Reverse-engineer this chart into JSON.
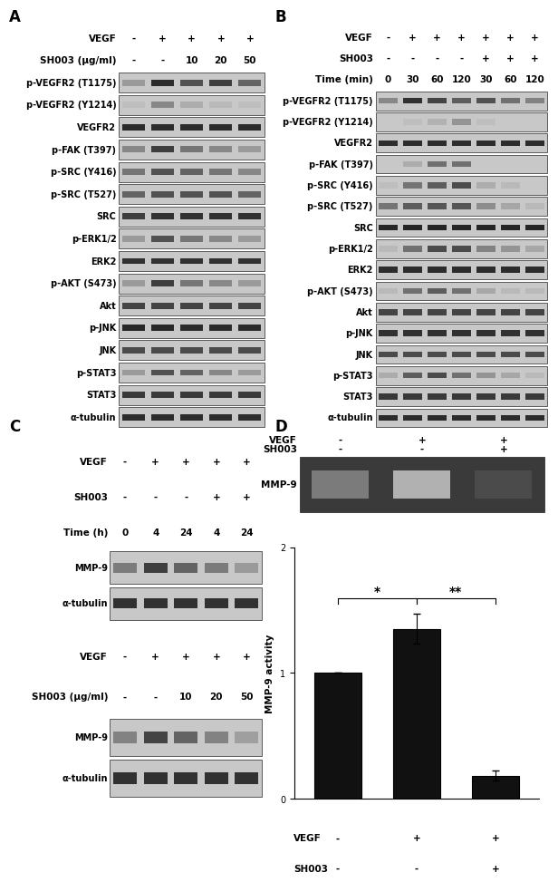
{
  "panel_A": {
    "label": "A",
    "header_rows": [
      "VEGF",
      "SH003 (μg/ml)"
    ],
    "header_vals_vegf": [
      "-",
      "+",
      "+",
      "+",
      "+"
    ],
    "header_vals_sh003": [
      "-",
      "-",
      "10",
      "20",
      "50"
    ],
    "blot_labels": [
      "p-VEGFR2 (T1175)",
      "p-VEGFR2 (Y1214)",
      "VEGFR2",
      "p-FAK (T397)",
      "p-SRC (Y416)",
      "p-SRC (T527)",
      "SRC",
      "p-ERK1/2",
      "ERK2",
      "p-AKT (S473)",
      "Akt",
      "p-JNK",
      "JNK",
      "p-STAT3",
      "STAT3",
      "α-tubulin"
    ],
    "band_patterns": {
      "p-VEGFR2 (T1175)": [
        0.25,
        0.85,
        0.65,
        0.75,
        0.55
      ],
      "p-VEGFR2 (Y1214)": [
        0.05,
        0.35,
        0.15,
        0.08,
        0.05
      ],
      "VEGFR2": [
        0.85,
        0.85,
        0.85,
        0.85,
        0.85
      ],
      "p-FAK (T397)": [
        0.35,
        0.75,
        0.45,
        0.35,
        0.25
      ],
      "p-SRC (Y416)": [
        0.45,
        0.65,
        0.55,
        0.45,
        0.35
      ],
      "p-SRC (T527)": [
        0.55,
        0.65,
        0.65,
        0.65,
        0.55
      ],
      "SRC": [
        0.75,
        0.82,
        0.82,
        0.82,
        0.82
      ],
      "p-ERK1/2": [
        0.25,
        0.65,
        0.45,
        0.35,
        0.25
      ],
      "ERK2": [
        0.82,
        0.82,
        0.82,
        0.82,
        0.82
      ],
      "p-AKT (S473)": [
        0.25,
        0.75,
        0.45,
        0.35,
        0.25
      ],
      "Akt": [
        0.72,
        0.72,
        0.72,
        0.72,
        0.72
      ],
      "p-JNK": [
        0.88,
        0.88,
        0.85,
        0.85,
        0.85
      ],
      "JNK": [
        0.68,
        0.68,
        0.68,
        0.68,
        0.68
      ],
      "p-STAT3": [
        0.25,
        0.65,
        0.55,
        0.35,
        0.25
      ],
      "STAT3": [
        0.78,
        0.78,
        0.78,
        0.78,
        0.78
      ],
      "α-tubulin": [
        0.85,
        0.85,
        0.85,
        0.85,
        0.85
      ]
    }
  },
  "panel_B": {
    "label": "B",
    "header_rows": [
      "VEGF",
      "SH003",
      "Time (min)"
    ],
    "header_vals_vegf": [
      "-",
      "+",
      "+",
      "+",
      "+",
      "+",
      "+"
    ],
    "header_vals_sh003": [
      "-",
      "-",
      "-",
      "-",
      "+",
      "+",
      "+"
    ],
    "header_vals_time": [
      "0",
      "30",
      "60",
      "120",
      "30",
      "60",
      "120"
    ],
    "blot_labels": [
      "p-VEGFR2 (T1175)",
      "p-VEGFR2 (Y1214)",
      "VEGFR2",
      "p-FAK (T397)",
      "p-SRC (Y416)",
      "p-SRC (T527)",
      "SRC",
      "p-ERK1/2",
      "ERK2",
      "p-AKT (S473)",
      "Akt",
      "p-JNK",
      "JNK",
      "p-STAT3",
      "STAT3",
      "α-tubulin"
    ],
    "band_patterns": {
      "p-VEGFR2 (T1175)": [
        0.35,
        0.82,
        0.72,
        0.58,
        0.65,
        0.48,
        0.38
      ],
      "p-VEGFR2 (Y1214)": [
        0.03,
        0.05,
        0.12,
        0.28,
        0.05,
        0.03,
        0.03
      ],
      "VEGFR2": [
        0.85,
        0.85,
        0.85,
        0.85,
        0.85,
        0.85,
        0.85
      ],
      "p-FAK (T397)": [
        0.03,
        0.15,
        0.48,
        0.48,
        0.03,
        0.03,
        0.03
      ],
      "p-SRC (Y416)": [
        0.05,
        0.45,
        0.58,
        0.68,
        0.15,
        0.08,
        0.03
      ],
      "p-SRC (T527)": [
        0.45,
        0.58,
        0.62,
        0.62,
        0.32,
        0.18,
        0.08
      ],
      "SRC": [
        0.88,
        0.88,
        0.88,
        0.88,
        0.88,
        0.88,
        0.88
      ],
      "p-ERK1/2": [
        0.08,
        0.48,
        0.68,
        0.68,
        0.38,
        0.28,
        0.18
      ],
      "ERK2": [
        0.85,
        0.85,
        0.85,
        0.85,
        0.85,
        0.85,
        0.85
      ],
      "p-AKT (S473)": [
        0.08,
        0.48,
        0.58,
        0.48,
        0.18,
        0.08,
        0.08
      ],
      "Akt": [
        0.72,
        0.72,
        0.72,
        0.72,
        0.72,
        0.72,
        0.72
      ],
      "p-JNK": [
        0.82,
        0.82,
        0.82,
        0.82,
        0.82,
        0.82,
        0.82
      ],
      "JNK": [
        0.68,
        0.68,
        0.68,
        0.68,
        0.68,
        0.68,
        0.68
      ],
      "p-STAT3": [
        0.15,
        0.58,
        0.68,
        0.48,
        0.28,
        0.18,
        0.08
      ],
      "STAT3": [
        0.78,
        0.78,
        0.78,
        0.78,
        0.78,
        0.78,
        0.78
      ],
      "α-tubulin": [
        0.85,
        0.85,
        0.85,
        0.85,
        0.85,
        0.85,
        0.85
      ]
    }
  },
  "panel_C": {
    "label": "C",
    "sub1_header": [
      "VEGF",
      "SH003",
      "Time (h)"
    ],
    "sub1_vegf": [
      "-",
      "+",
      "+",
      "+",
      "+"
    ],
    "sub1_sh003": [
      "-",
      "-",
      "-",
      "+",
      "+"
    ],
    "sub1_time": [
      "0",
      "4",
      "24",
      "4",
      "24"
    ],
    "sub1_blots": [
      "MMP-9",
      "α-tubulin"
    ],
    "sub1_patterns": {
      "MMP-9": [
        0.42,
        0.75,
        0.55,
        0.42,
        0.25
      ],
      "α-tubulin": [
        0.82,
        0.82,
        0.82,
        0.82,
        0.82
      ]
    },
    "sub2_header": [
      "VEGF",
      "SH003 (μg/ml)"
    ],
    "sub2_vegf": [
      "-",
      "+",
      "+",
      "+",
      "+"
    ],
    "sub2_sh003": [
      "-",
      "-",
      "10",
      "20",
      "50"
    ],
    "sub2_blots": [
      "MMP-9",
      "α-tubulin"
    ],
    "sub2_patterns": {
      "MMP-9": [
        0.38,
        0.72,
        0.55,
        0.38,
        0.22
      ],
      "α-tubulin": [
        0.82,
        0.82,
        0.82,
        0.82,
        0.82
      ]
    }
  },
  "panel_D": {
    "label": "D",
    "gel_vegf": [
      "-",
      "+",
      "+"
    ],
    "gel_sh003": [
      "-",
      "-",
      "+"
    ],
    "gel_band_alphas": [
      0.45,
      0.82,
      0.12
    ],
    "bar_values": [
      1.0,
      1.35,
      0.18
    ],
    "bar_errors": [
      0.0,
      0.12,
      0.04
    ],
    "bar_colors": [
      "#111111",
      "#111111",
      "#111111"
    ],
    "ylabel": "MMP-9 activity",
    "ylim": [
      0,
      2.0
    ],
    "yticks": [
      0,
      1,
      2
    ],
    "vegf_vals": [
      "-",
      "+",
      "+"
    ],
    "sh003_vals": [
      "-",
      "-",
      "+"
    ]
  },
  "bg_color": "#ffffff",
  "text_color": "#000000",
  "blot_bg": "#c8c8c8",
  "blot_border": "#444444",
  "font_size_panel": 12,
  "font_size_hdr": 7.5,
  "font_size_blot_label": 7.0
}
